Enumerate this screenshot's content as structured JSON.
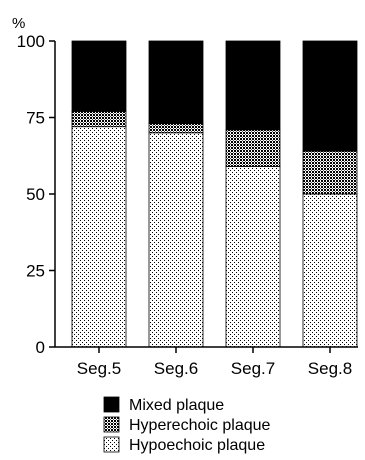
{
  "chart_data": {
    "type": "bar",
    "stacked": true,
    "y_unit": "%",
    "categories": [
      "Seg.5",
      "Seg.6",
      "Seg.7",
      "Seg.8"
    ],
    "series": [
      {
        "name": "Hypoechoic plaque",
        "values": [
          72,
          70,
          59,
          50
        ],
        "pattern": "fine-dots"
      },
      {
        "name": "Hyperechoic plaque",
        "values": [
          5,
          3,
          12,
          14
        ],
        "pattern": "coarse-dots"
      },
      {
        "name": "Mixed plaque",
        "values": [
          23,
          27,
          29,
          36
        ],
        "pattern": "solid-black"
      }
    ],
    "ylim": [
      0,
      100
    ],
    "yticks": [
      "0",
      "25",
      "50",
      "75",
      "100"
    ],
    "legend_order": [
      "Mixed plaque",
      "Hyperechoic plaque",
      "Hypoechoic plaque"
    ],
    "legend_position": "bottom",
    "grid": false,
    "colors": {
      "bar_fill": "#000000",
      "dots_bg": "#ffffff",
      "axis": "#000000"
    }
  }
}
